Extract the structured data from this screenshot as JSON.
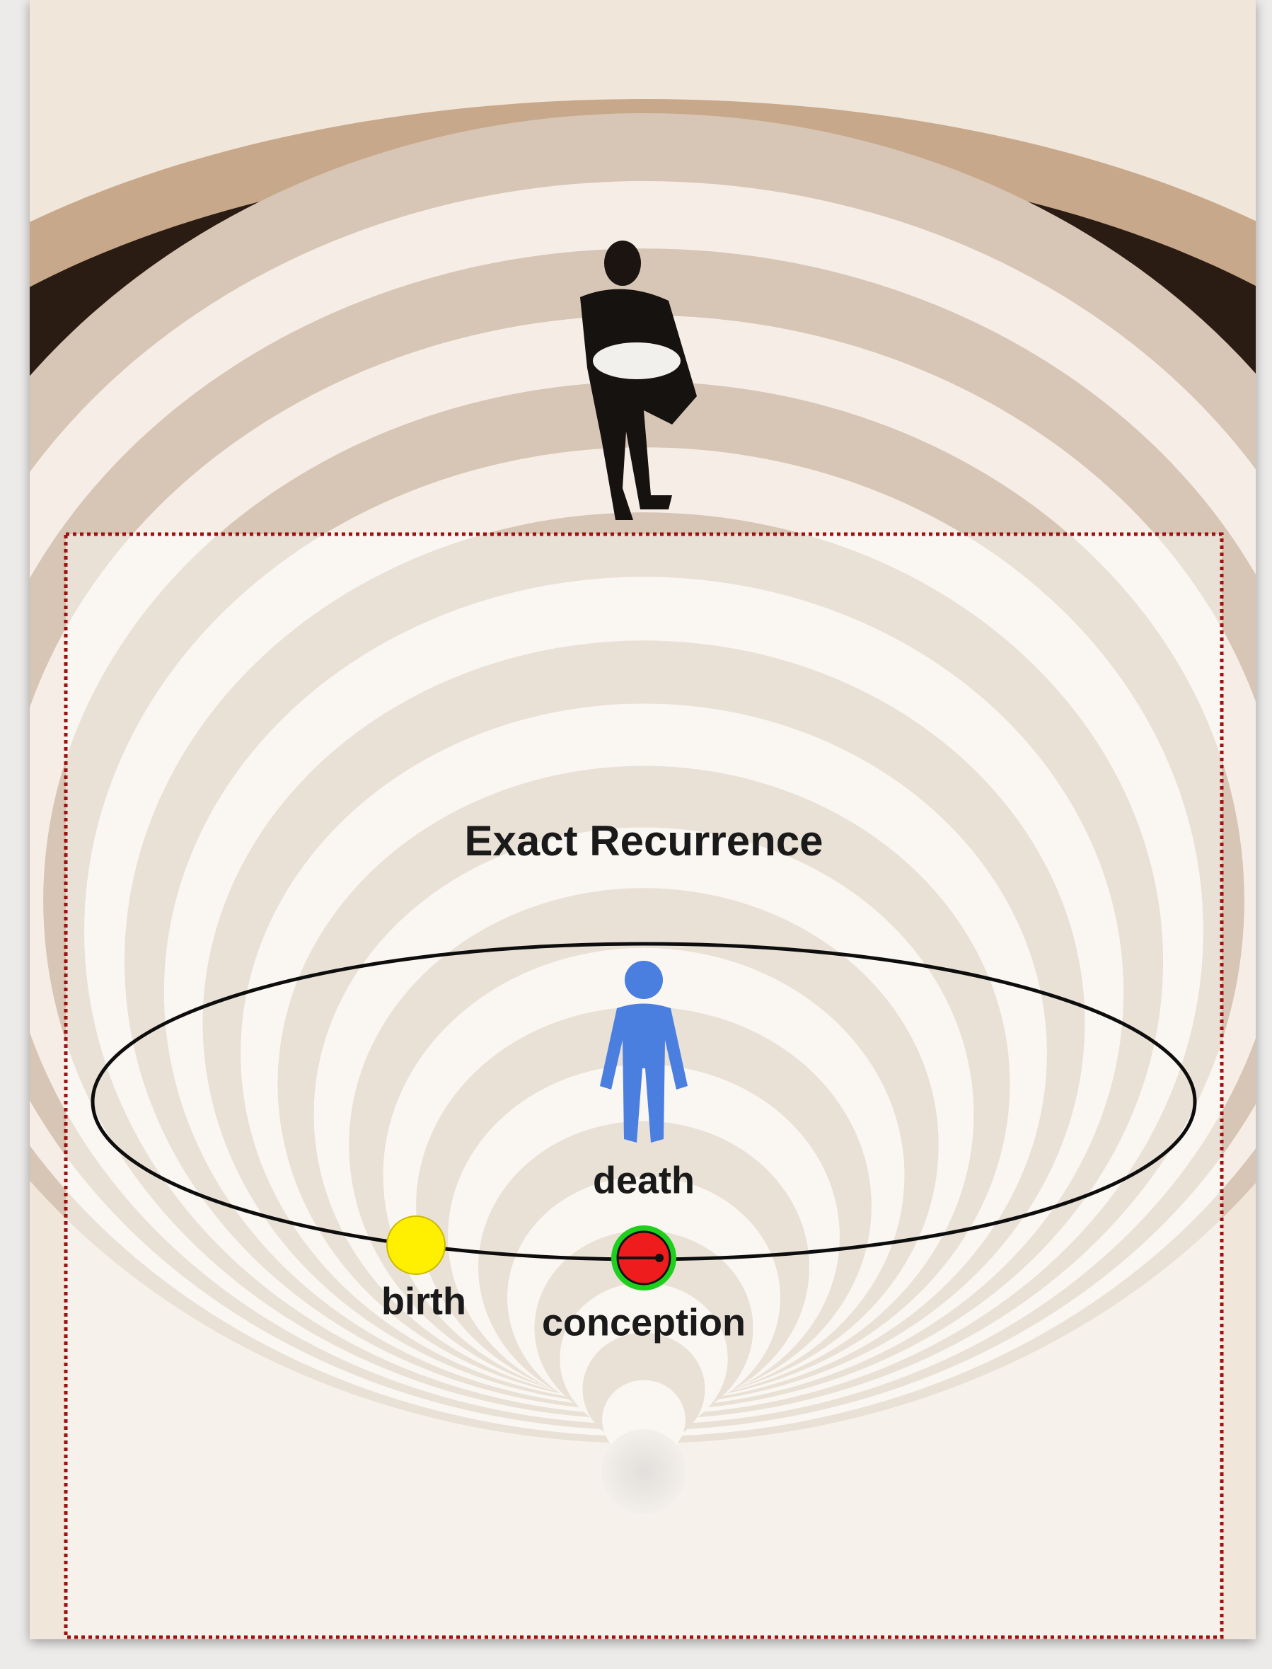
{
  "diagram": {
    "title": "Exact Recurrence",
    "nodes": [
      {
        "label": "death"
      },
      {
        "label": "birth"
      },
      {
        "label": "conception"
      }
    ]
  }
}
